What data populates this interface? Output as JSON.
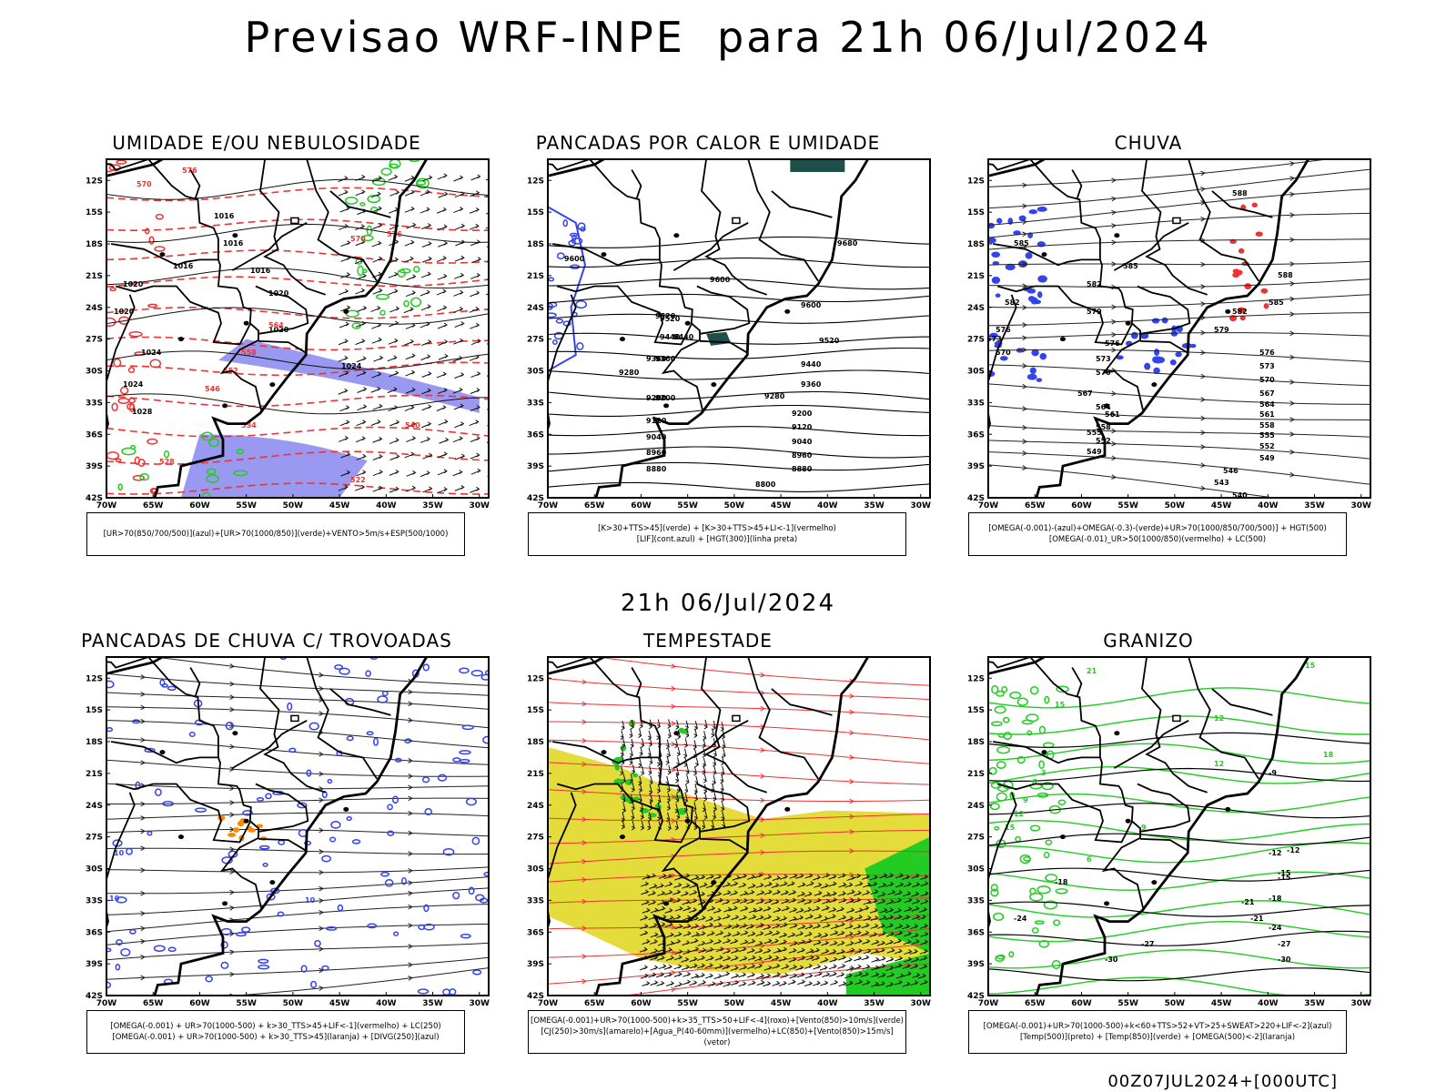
{
  "header": {
    "title": "Previsao WRF-INPE  para 21h 06/Jul/2024",
    "mid_date": "21h 06/Jul/2024",
    "footer": "00Z07JUL2024+[000UTC]"
  },
  "axes": {
    "lat": [
      "12S",
      "15S",
      "18S",
      "21S",
      "24S",
      "27S",
      "30S",
      "33S",
      "36S",
      "39S",
      "42S"
    ],
    "lon": [
      "70W",
      "65W",
      "60W",
      "55W",
      "50W",
      "45W",
      "40W",
      "35W",
      "30W"
    ]
  },
  "colors": {
    "blue": "#3344ee",
    "lightblue": "#9999f2",
    "green": "#22cc22",
    "red": "#ee3333",
    "yellow": "#e3dc3a",
    "darkteal": "#1f4f4a",
    "orange": "#ff8800"
  },
  "panels": [
    {
      "id": "umidade",
      "title": "UMIDADE E/OU NEBULOSIDADE",
      "legend": [
        "[UR>70(850/700/500)](azul)+[UR>70(1000/850)](verde)+VENTO>5m/s+ESP(500/1000)"
      ],
      "labels_black": [
        "1016",
        "1016",
        "1016",
        "1016",
        "1020",
        "1020",
        "1020",
        "1024",
        "1024",
        "1024",
        "1028",
        "1020"
      ],
      "labels_red": [
        "576",
        "570",
        "570",
        "576",
        "564",
        "558",
        "552",
        "546",
        "540",
        "534",
        "528",
        "522"
      ]
    },
    {
      "id": "pancadas_calor",
      "title": "PANCADAS POR CALOR E UMIDADE",
      "legend": [
        "[K>30+TTS>45](verde) + [K>30+TTS>45+LI<-1](vermelho)",
        "[LIF](cont.azul) + [HGT(300)](linha preta)"
      ],
      "labels_black": [
        "9680",
        "9600",
        "9600",
        "9520",
        "9520",
        "9600",
        "9440",
        "9440",
        "9360",
        "9360",
        "9280",
        "9280",
        "9200",
        "9200",
        "9120",
        "9120",
        "9040",
        "9040",
        "8960",
        "8960",
        "8880",
        "8880",
        "8800",
        "9520",
        "9440",
        "9360",
        "9200",
        "20"
      ]
    },
    {
      "id": "chuva",
      "title": "CHUVA",
      "legend": [
        "[OMEGA(-0.001)-(azul)+OMEGA(-0.3)-(verde)+UR>70(1000/850/700/500)] + HGT(500)",
        "[OMEGA(-0.01)_UR>50(1000/850)(vermelho) + LC(500)"
      ],
      "labels_black": [
        "588",
        "585",
        "585",
        "588",
        "582",
        "585",
        "582",
        "579",
        "579",
        "576",
        "576",
        "573",
        "573",
        "570",
        "570",
        "567",
        "567",
        "564",
        "564",
        "561",
        "561",
        "558",
        "558",
        "555",
        "555",
        "552",
        "552",
        "549",
        "549",
        "546",
        "543",
        "540",
        "582",
        "576",
        "573",
        "570"
      ]
    },
    {
      "id": "pancadas_trovoadas",
      "title": "PANCADAS DE CHUVA C/ TROVOADAS",
      "legend": [
        "[OMEGA(-0.001) + UR>70(1000-500) + k>30_TTS>45+LIF<-1](vermelho) + LC(250)",
        "[OMEGA(-0.001) + UR>70(1000-500) + k>30_TTS>45](laranja) + [DIVG(250)](azul)"
      ],
      "labels_blue": [
        "10",
        "10",
        "10"
      ]
    },
    {
      "id": "tempestade",
      "title": "TEMPESTADE",
      "legend": [
        "[OMEGA(-0.001)+UR>70(1000-500)+k>35_TTS>50+LIF<-4](roxo)+[Vento(850)>10m/s](verde)",
        "[CJ(250)>30m/s](amarelo)+[Agua_P(40-60mm)](vermelho)+LC(850)+[Vento(850)>15m/s](vetor)"
      ]
    },
    {
      "id": "granizo",
      "title": "GRANIZO",
      "legend": [
        "[OMEGA(-0.001)+UR>70(1000-500)+k<60+TTS>52+VT>25+SWEAT>220+LIF<-2](azul)",
        "[Temp(500)](preto) + [Temp(850)](verde) + [OMEGA(500)<-2](laranja)"
      ],
      "labels_black": [
        "-9",
        "-12",
        "-15",
        "-18",
        "-21",
        "-24",
        "-27",
        "-30",
        "-12",
        "-15",
        "-18",
        "-21",
        "-24",
        "-27",
        "-30"
      ],
      "labels_green": [
        "15",
        "15",
        "12",
        "12",
        "9",
        "6",
        "18",
        "21",
        "15",
        "12",
        "9",
        "6",
        "3"
      ]
    }
  ]
}
